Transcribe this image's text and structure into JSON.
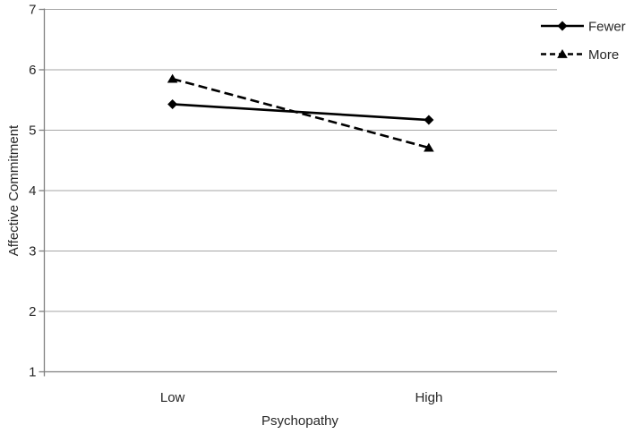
{
  "chart_data": {
    "type": "line",
    "title": "",
    "xlabel": "Psychopathy",
    "ylabel": "Affective Commitment",
    "categories": [
      "Low",
      "High"
    ],
    "series": [
      {
        "name": "Fewer",
        "values": [
          5.43,
          5.17
        ],
        "line_style": "solid",
        "marker": "diamond",
        "color": "#000000"
      },
      {
        "name": "More",
        "values": [
          5.85,
          4.71
        ],
        "line_style": "dashed",
        "marker": "triangle-up",
        "color": "#000000"
      }
    ],
    "ylim": [
      1,
      7
    ],
    "yticks": [
      1,
      2,
      3,
      4,
      5,
      6,
      7
    ],
    "grid": "horizontal-only",
    "legend": {
      "position": "top-right",
      "entries": [
        "Fewer",
        "More"
      ]
    },
    "colors": {
      "gridline": "#a6a6a6",
      "axis": "#808080",
      "text": "#262626",
      "series": "#000000",
      "background": "#ffffff"
    }
  }
}
